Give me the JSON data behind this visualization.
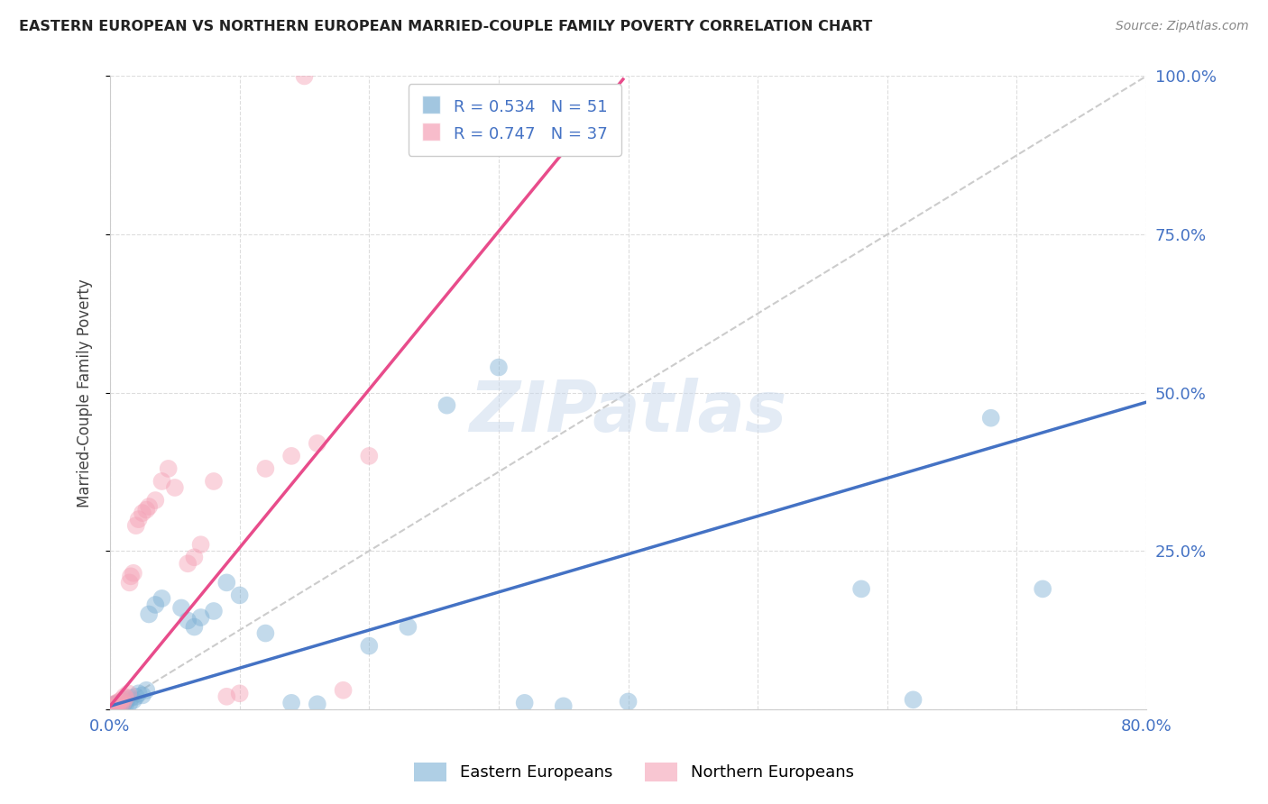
{
  "title": "EASTERN EUROPEAN VS NORTHERN EUROPEAN MARRIED-COUPLE FAMILY POVERTY CORRELATION CHART",
  "source": "Source: ZipAtlas.com",
  "ylabel": "Married-Couple Family Poverty",
  "xlabel": "",
  "xlim": [
    0.0,
    0.8
  ],
  "ylim": [
    0.0,
    1.0
  ],
  "xticks": [
    0.0,
    0.1,
    0.2,
    0.3,
    0.4,
    0.5,
    0.6,
    0.7,
    0.8
  ],
  "yticks": [
    0.0,
    0.25,
    0.5,
    0.75,
    1.0
  ],
  "watermark": "ZIPatlas",
  "eastern_color": "#7bafd4",
  "northern_color": "#f4a0b5",
  "eastern_R": 0.534,
  "eastern_N": 51,
  "northern_R": 0.747,
  "northern_N": 37,
  "regression_eastern_slope": 0.6,
  "regression_eastern_intercept": 0.005,
  "regression_northern_slope": 2.5,
  "regression_northern_intercept": 0.005,
  "eastern_scatter_x": [
    0.001,
    0.002,
    0.003,
    0.003,
    0.004,
    0.004,
    0.005,
    0.005,
    0.006,
    0.006,
    0.007,
    0.007,
    0.008,
    0.008,
    0.009,
    0.009,
    0.01,
    0.011,
    0.012,
    0.013,
    0.015,
    0.016,
    0.018,
    0.02,
    0.022,
    0.025,
    0.028,
    0.03,
    0.035,
    0.04,
    0.055,
    0.06,
    0.065,
    0.07,
    0.08,
    0.09,
    0.1,
    0.12,
    0.14,
    0.16,
    0.2,
    0.23,
    0.26,
    0.3,
    0.32,
    0.35,
    0.4,
    0.58,
    0.62,
    0.68,
    0.72
  ],
  "eastern_scatter_y": [
    0.005,
    0.003,
    0.004,
    0.007,
    0.002,
    0.008,
    0.003,
    0.006,
    0.004,
    0.009,
    0.003,
    0.007,
    0.005,
    0.01,
    0.004,
    0.008,
    0.006,
    0.012,
    0.008,
    0.015,
    0.01,
    0.018,
    0.014,
    0.02,
    0.025,
    0.022,
    0.03,
    0.15,
    0.165,
    0.175,
    0.16,
    0.14,
    0.13,
    0.145,
    0.155,
    0.2,
    0.18,
    0.12,
    0.01,
    0.008,
    0.1,
    0.13,
    0.48,
    0.54,
    0.01,
    0.005,
    0.012,
    0.19,
    0.015,
    0.46,
    0.19
  ],
  "northern_scatter_x": [
    0.001,
    0.002,
    0.003,
    0.004,
    0.005,
    0.006,
    0.007,
    0.008,
    0.009,
    0.01,
    0.011,
    0.012,
    0.014,
    0.015,
    0.016,
    0.018,
    0.02,
    0.022,
    0.025,
    0.028,
    0.03,
    0.035,
    0.04,
    0.045,
    0.05,
    0.06,
    0.065,
    0.07,
    0.08,
    0.09,
    0.1,
    0.12,
    0.14,
    0.16,
    0.18,
    0.2,
    0.15
  ],
  "northern_scatter_y": [
    0.003,
    0.005,
    0.008,
    0.004,
    0.01,
    0.006,
    0.012,
    0.008,
    0.015,
    0.01,
    0.02,
    0.018,
    0.025,
    0.2,
    0.21,
    0.215,
    0.29,
    0.3,
    0.31,
    0.315,
    0.32,
    0.33,
    0.36,
    0.38,
    0.35,
    0.23,
    0.24,
    0.26,
    0.36,
    0.02,
    0.025,
    0.38,
    0.4,
    0.42,
    0.03,
    0.4,
    1.0
  ],
  "diag_line_color": "#cccccc",
  "regression_eastern_color": "#4472c4",
  "regression_northern_color": "#e84c8b",
  "background_color": "#ffffff",
  "grid_color": "#dddddd"
}
